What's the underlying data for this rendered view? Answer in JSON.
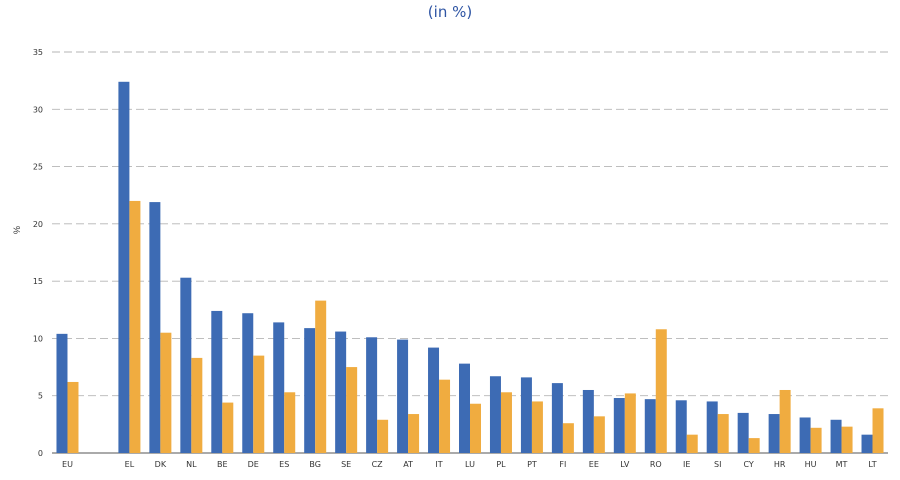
{
  "chart_data": {
    "type": "bar",
    "title": "(in %)",
    "xlabel": "",
    "ylabel": "%",
    "ylim": [
      0,
      35
    ],
    "yticks": [
      0,
      5,
      10,
      15,
      20,
      25,
      30,
      35
    ],
    "grid": true,
    "legend": "none",
    "colors": [
      "#3d6bb4",
      "#f0ac40"
    ],
    "categories": [
      "EU",
      "",
      "EL",
      "DK",
      "NL",
      "BE",
      "DE",
      "ES",
      "BG",
      "SE",
      "CZ",
      "AT",
      "IT",
      "LU",
      "PL",
      "PT",
      "FI",
      "EE",
      "LV",
      "RO",
      "IE",
      "SI",
      "CY",
      "HR",
      "HU",
      "MT",
      "LT"
    ],
    "series": [
      {
        "values": [
          10.4,
          null,
          32.4,
          21.9,
          15.3,
          12.4,
          12.2,
          11.4,
          10.9,
          10.6,
          10.1,
          9.9,
          9.2,
          7.8,
          6.7,
          6.6,
          6.1,
          5.5,
          4.8,
          4.7,
          4.6,
          4.5,
          3.5,
          3.4,
          3.1,
          2.9,
          1.6
        ]
      },
      {
        "values": [
          6.2,
          null,
          22.0,
          10.5,
          8.3,
          4.4,
          8.5,
          5.3,
          13.3,
          7.5,
          2.9,
          3.4,
          6.4,
          4.3,
          5.3,
          4.5,
          2.6,
          3.2,
          5.2,
          10.8,
          1.6,
          3.4,
          1.3,
          5.5,
          2.2,
          2.3,
          3.9
        ]
      }
    ]
  }
}
